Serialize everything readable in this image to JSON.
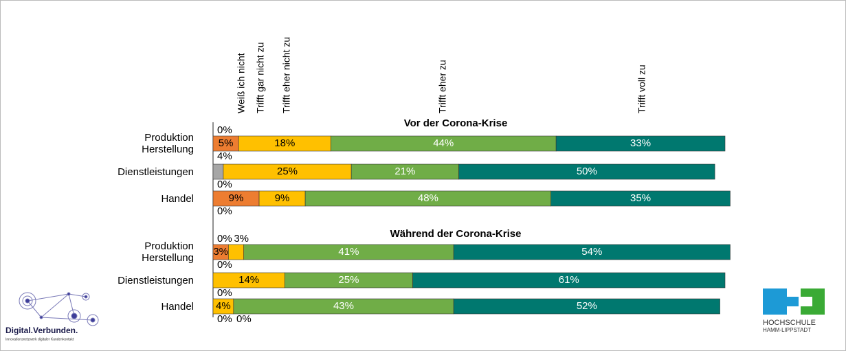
{
  "chart_data": [
    {
      "type": "bar",
      "orientation": "horizontal",
      "stacked": true,
      "title": "Vor der Corona-Krise",
      "categories": [
        "Produktion\nHerstellung",
        "Dienstleistungen",
        "Handel"
      ],
      "xlim": [
        0,
        100
      ],
      "series": [
        {
          "name": "Weiß ich nicht",
          "color": "#a6a6a6",
          "label_color": "#000000",
          "values": [
            0,
            2,
            0
          ],
          "value_labels": [
            "0%",
            null,
            "0%"
          ]
        },
        {
          "name": "Trifft gar nicht zu",
          "color": "#ed7d31",
          "label_color": "#000000",
          "values": [
            5,
            0,
            9
          ],
          "value_labels": [
            "5%",
            "0%",
            "9%"
          ]
        },
        {
          "name": "Trifft eher nicht zu",
          "color": "#ffc000",
          "label_color": "#000000",
          "values": [
            18,
            25,
            9
          ],
          "value_labels": [
            "18%",
            "25%",
            "9%"
          ]
        },
        {
          "name": "Trifft eher zu",
          "color": "#70ad47",
          "label_color": "#ffffff",
          "values": [
            44,
            21,
            48
          ],
          "value_labels": [
            "44%",
            "21%",
            "48%"
          ]
        },
        {
          "name": "Trifft voll zu",
          "color": "#00786f",
          "label_color": "#ffffff",
          "values": [
            33,
            50,
            35
          ],
          "value_labels": [
            "33%",
            "50%",
            "35%"
          ]
        }
      ],
      "annotations": [
        "4%"
      ]
    },
    {
      "type": "bar",
      "orientation": "horizontal",
      "stacked": true,
      "title": "Während der Corona-Krise",
      "categories": [
        "Produktion\nHerstellung",
        "Dienstleistungen",
        "Handel"
      ],
      "xlim": [
        0,
        100
      ],
      "series": [
        {
          "name": "Weiß ich nicht",
          "color": "#a6a6a6",
          "label_color": "#000000",
          "values": [
            0,
            0,
            0
          ],
          "value_labels": [
            "0%",
            "0%",
            "0%"
          ]
        },
        {
          "name": "Trifft gar nicht zu",
          "color": "#ed7d31",
          "label_color": "#000000",
          "values": [
            3,
            null,
            0
          ],
          "value_labels": [
            "3%",
            null,
            "0%"
          ]
        },
        {
          "name": "Trifft eher nicht zu",
          "color": "#ffc000",
          "label_color": "#000000",
          "values": [
            3,
            14,
            4
          ],
          "value_labels": [
            "3%",
            "14%",
            "4%"
          ]
        },
        {
          "name": "Trifft eher zu",
          "color": "#70ad47",
          "label_color": "#ffffff",
          "values": [
            41,
            25,
            43
          ],
          "value_labels": [
            "41%",
            "25%",
            "43%"
          ]
        },
        {
          "name": "Trifft voll zu",
          "color": "#00786f",
          "label_color": "#ffffff",
          "values": [
            54,
            61,
            52
          ],
          "value_labels": [
            "54%",
            "61%",
            "52%"
          ]
        }
      ],
      "annotations": [
        "0%"
      ]
    }
  ],
  "logos": {
    "left_title": "Digital.Verbunden.",
    "left_subtitle": "Innovationsnetzwerk digitaler Kundenkontakt",
    "right_line1": "HOCHSCHULE",
    "right_line2": "HAMM-LIPPSTADT"
  }
}
